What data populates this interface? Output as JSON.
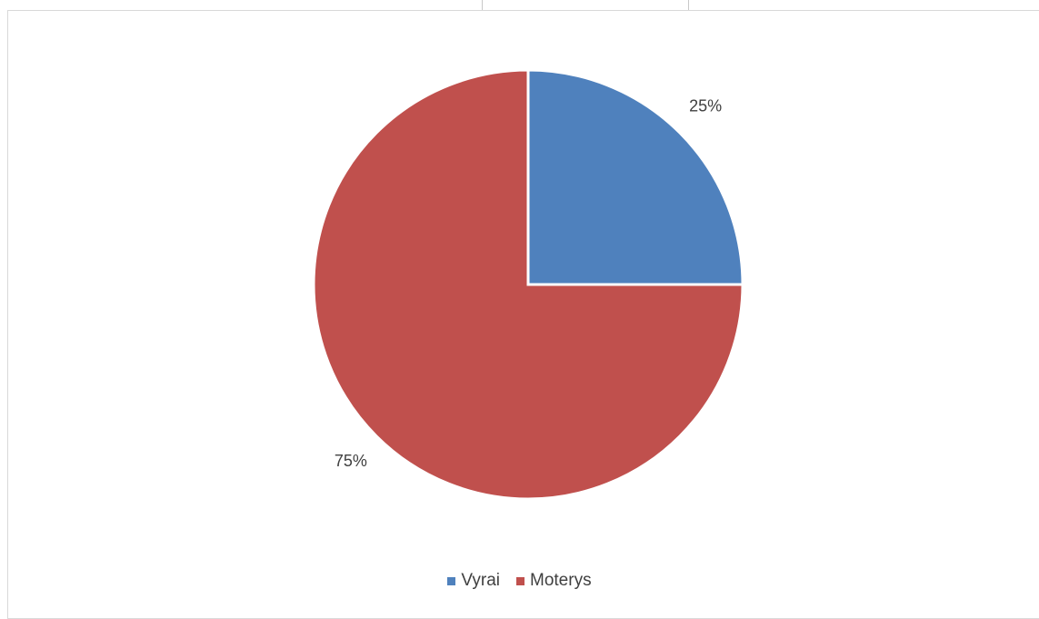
{
  "chart_data": {
    "type": "pie",
    "title": "",
    "categories": [
      "Vyrai",
      "Moterys"
    ],
    "values": [
      25,
      75
    ],
    "data_labels": [
      "25%",
      "75%"
    ],
    "colors": [
      "#4f81bd",
      "#c0504d"
    ],
    "legend_position": "bottom",
    "start_angle_deg": 0,
    "direction": "clockwise"
  }
}
